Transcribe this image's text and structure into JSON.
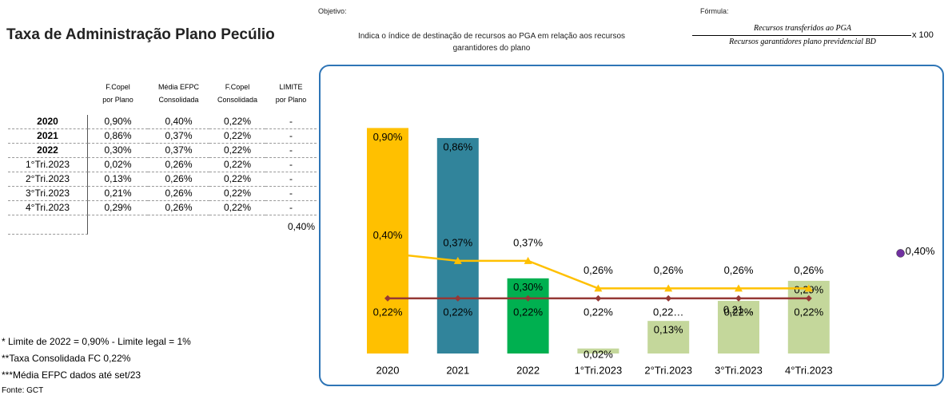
{
  "header": {
    "title": "Taxa de Administração Plano Pecúlio",
    "objective_label": "Objetivo:",
    "objective_text": [
      "Indica o índice de destinação de recursos ao PGA em relação aos recursos",
      "garantidores do plano"
    ],
    "formula_label": "Fórmula:",
    "formula_numerator": "Recursos transferidos ao PGA",
    "formula_denominator": "Recursos garantidores plano previdencial BD",
    "formula_factor": "x 100"
  },
  "table": {
    "headers": [
      [
        "F.Copel",
        "por Plano"
      ],
      [
        "Média EFPC",
        "Consolidada"
      ],
      [
        "F.Copel",
        "Consolidada"
      ],
      [
        "LIMITE",
        "por Plano"
      ]
    ],
    "rows": [
      [
        "2020",
        "0,90%",
        "0,40%",
        "0,22%",
        "-"
      ],
      [
        "2021",
        "0,86%",
        "0,37%",
        "0,22%",
        "-"
      ],
      [
        "2022",
        "0,30%",
        "0,37%",
        "0,22%",
        "-"
      ],
      [
        "1°Tri.2023",
        "0,02%",
        "0,26%",
        "0,22%",
        "-"
      ],
      [
        "2°Tri.2023",
        "0,13%",
        "0,26%",
        "0,22%",
        "-"
      ],
      [
        "3°Tri.2023",
        "0,21%",
        "0,26%",
        "0,22%",
        "-"
      ],
      [
        "4°Tri.2023",
        "0,29%",
        "0,26%",
        "0,22%",
        "-"
      ]
    ],
    "limit_row": "0,40%"
  },
  "notes": [
    "* Limite de 2022 = 0,90% - Limite legal = 1%",
    "**Taxa Consolidada FC 0,22%",
    "***Média EFPC dados até set/23",
    "Fonte: GCT"
  ],
  "chart_data": {
    "type": "bar",
    "categories": [
      "2020",
      "2021",
      "2022",
      "1°Tri.2023",
      "2°Tri.2023",
      "3°Tri.2023",
      "4°Tri.2023",
      null
    ],
    "ylim": [
      0,
      1.0
    ],
    "series": [
      {
        "type": "bar",
        "colors": [
          "#FFC000",
          "#31849B",
          "#00B050",
          "#C4D79B",
          "#C4D79B",
          "#C4D79B",
          "#C4D79B",
          "#C4D79B"
        ],
        "values": [
          0.9,
          0.86,
          0.3,
          0.02,
          0.13,
          0.21,
          0.29,
          null
        ],
        "value_labels": [
          "0,90%",
          "0,86%",
          "0,30%",
          "0,02%",
          "0,13%",
          "0,21…",
          "0,29%",
          null
        ]
      },
      {
        "type": "line",
        "color": "#FFC000",
        "marker": "triangle",
        "values": [
          0.4,
          0.37,
          0.37,
          0.26,
          0.26,
          0.26,
          0.26,
          null
        ],
        "value_labels": [
          "0,40%",
          "0,37%",
          "0,37%",
          "0,26%",
          "0,26%",
          "0,26%",
          "0,26%",
          null
        ]
      },
      {
        "type": "line",
        "color": "#953735",
        "marker": "diamond",
        "values": [
          0.22,
          0.22,
          0.22,
          0.22,
          0.22,
          0.22,
          0.22,
          null
        ],
        "value_labels": [
          "0,22%",
          "0,22%",
          "0,22%",
          "0,22%",
          "0,22…",
          "0,22%",
          "0,22%",
          null
        ]
      },
      {
        "type": "point",
        "color": "#7030A0",
        "marker": "circle",
        "values": [
          null,
          null,
          null,
          null,
          null,
          null,
          null,
          0.4
        ],
        "value_labels": [
          null,
          null,
          null,
          null,
          null,
          null,
          null,
          "0,40%"
        ]
      }
    ]
  }
}
